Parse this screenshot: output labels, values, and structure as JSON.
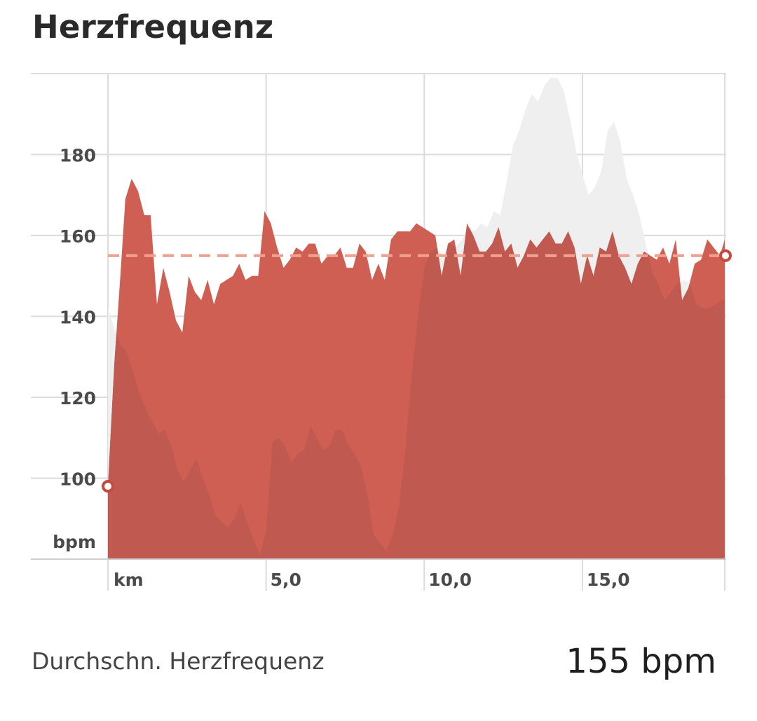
{
  "colors": {
    "hr_fill": "#cf5f52",
    "hr_overlap": "#c05a50",
    "elevation_fill": "#efefef",
    "avg_line": "#f0a08e",
    "grid": "#dcdcdc",
    "marker": "#c64a3e"
  },
  "chart_data": {
    "type": "area",
    "title": "Herzfrequenz",
    "xlabel": "km",
    "ylabel": "bpm",
    "x_range": [
      0,
      19.5
    ],
    "y_range": [
      80,
      200
    ],
    "x_ticks": [
      {
        "value": 5,
        "label": "5,0"
      },
      {
        "value": 10,
        "label": "10,0"
      },
      {
        "value": 15,
        "label": "15,0"
      }
    ],
    "y_ticks": [
      {
        "value": 180,
        "label": "180"
      },
      {
        "value": 160,
        "label": "160"
      },
      {
        "value": 140,
        "label": "140"
      },
      {
        "value": 120,
        "label": "120"
      },
      {
        "value": 100,
        "label": "100"
      }
    ],
    "grid": true,
    "average": 155,
    "series": [
      {
        "name": "",
        "role": "heart_rate",
        "x": [
          0.0,
          0.2,
          0.4,
          0.55,
          0.75,
          0.95,
          1.15,
          1.35,
          1.55,
          1.75,
          1.95,
          2.15,
          2.35,
          2.55,
          2.75,
          2.95,
          3.15,
          3.35,
          3.55,
          3.75,
          3.95,
          4.15,
          4.35,
          4.55,
          4.75,
          4.95,
          5.15,
          5.35,
          5.55,
          5.75,
          5.95,
          6.15,
          6.35,
          6.55,
          6.75,
          6.95,
          7.15,
          7.35,
          7.55,
          7.75,
          7.95,
          8.15,
          8.35,
          8.55,
          8.75,
          8.95,
          9.15,
          9.35,
          9.55,
          9.75,
          9.95,
          10.15,
          10.35,
          10.55,
          10.75,
          10.95,
          11.15,
          11.35,
          11.55,
          11.75,
          11.95,
          12.15,
          12.35,
          12.55,
          12.75,
          12.95,
          13.15,
          13.35,
          13.55,
          13.75,
          13.95,
          14.15,
          14.35,
          14.55,
          14.75,
          14.95,
          15.15,
          15.35,
          15.55,
          15.75,
          15.95,
          16.15,
          16.35,
          16.55,
          16.75,
          16.95,
          17.15,
          17.35,
          17.55,
          17.75,
          17.95,
          18.15,
          18.35,
          18.55,
          18.75,
          18.95,
          19.15,
          19.35,
          19.5
        ],
        "values": [
          98,
          128,
          151,
          169,
          174,
          171,
          165,
          165,
          143,
          152,
          146,
          139,
          136,
          150,
          146,
          144,
          149,
          143,
          148,
          149,
          150,
          153,
          149,
          150,
          150,
          166,
          163,
          157,
          152,
          154,
          157,
          156,
          158,
          158,
          153,
          155,
          155,
          157,
          152,
          152,
          158,
          156,
          149,
          153,
          149,
          159,
          161,
          161,
          161,
          163,
          162,
          161,
          160,
          150,
          158,
          159,
          150,
          163,
          160,
          156,
          156,
          158,
          162,
          156,
          158,
          152,
          155,
          159,
          157,
          159,
          161,
          158,
          158,
          161,
          157,
          148,
          155,
          150,
          157,
          156,
          161,
          155,
          152,
          148,
          153,
          156,
          155,
          154,
          157,
          153,
          159,
          144,
          147,
          153,
          154,
          159,
          157,
          155,
          159
        ]
      },
      {
        "name": "",
        "role": "elevation_profile",
        "x": [
          0.0,
          0.2,
          0.4,
          0.6,
          0.8,
          1.0,
          1.2,
          1.4,
          1.6,
          1.8,
          2.0,
          2.2,
          2.4,
          2.6,
          2.8,
          3.0,
          3.2,
          3.4,
          3.6,
          3.8,
          4.0,
          4.2,
          4.4,
          4.6,
          4.8,
          5.0,
          5.2,
          5.4,
          5.6,
          5.8,
          6.0,
          6.2,
          6.4,
          6.6,
          6.8,
          7.0,
          7.2,
          7.4,
          7.6,
          7.8,
          8.0,
          8.2,
          8.4,
          8.6,
          8.8,
          9.0,
          9.2,
          9.4,
          9.6,
          9.8,
          10.0,
          10.2,
          10.4,
          10.6,
          10.8,
          11.0,
          11.2,
          11.4,
          11.6,
          11.8,
          12.0,
          12.2,
          12.4,
          12.6,
          12.8,
          13.0,
          13.2,
          13.4,
          13.6,
          13.8,
          14.0,
          14.2,
          14.4,
          14.6,
          14.8,
          15.0,
          15.2,
          15.4,
          15.6,
          15.8,
          16.0,
          16.2,
          16.4,
          16.6,
          16.8,
          17.0,
          17.2,
          17.4,
          17.6,
          17.8,
          18.0,
          18.2,
          18.4,
          18.6,
          18.8,
          19.0,
          19.2,
          19.4,
          19.5
        ],
        "values": [
          142,
          137,
          133,
          131,
          126,
          121,
          117,
          114,
          111,
          112,
          108,
          102,
          99,
          102,
          105,
          100,
          96,
          91,
          89,
          88,
          90,
          94,
          89,
          85,
          81,
          87,
          109,
          110,
          108,
          104,
          106,
          107,
          113,
          110,
          107,
          108,
          112,
          112,
          108,
          106,
          103,
          96,
          86,
          84,
          82,
          86,
          93,
          107,
          125,
          140,
          152,
          156,
          157,
          155,
          158,
          157,
          159,
          162,
          161,
          163,
          162,
          166,
          165,
          173,
          182,
          186,
          191,
          195,
          193,
          197,
          199,
          199,
          196,
          189,
          181,
          175,
          170,
          172,
          176,
          186,
          188,
          183,
          174,
          170,
          165,
          158,
          151,
          148,
          144,
          146,
          148,
          149,
          148,
          143,
          142,
          142,
          143,
          144,
          144
        ]
      }
    ]
  },
  "summary": {
    "label": "Durchschn. Herzfrequenz",
    "value": "155 bpm"
  }
}
